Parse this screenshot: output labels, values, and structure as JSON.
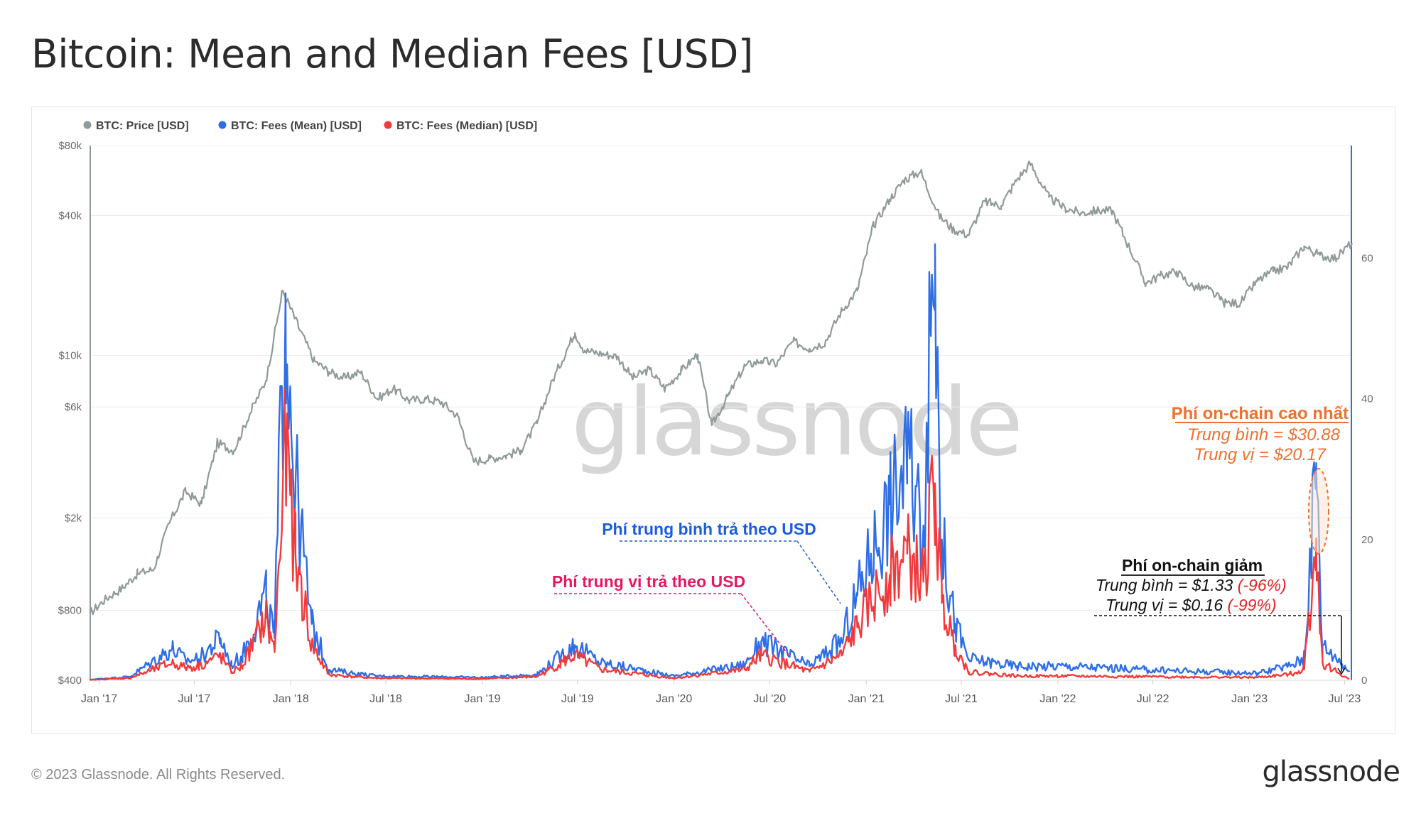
{
  "page": {
    "title": "Bitcoin: Mean and Median Fees [USD]",
    "copyright": "© 2023 Glassnode. All Rights Reserved.",
    "logo": "glassnode",
    "watermark": "glassnode"
  },
  "colors": {
    "price": "#8f9a9a",
    "mean": "#2e6ee6",
    "median": "#f23a3a",
    "accent_orange": "#f07030",
    "median_label": "#e8175d",
    "mean_label": "#1a5ce0"
  },
  "legend": [
    {
      "label": "BTC: Price [USD]",
      "color": "#8f9a9a"
    },
    {
      "label": "BTC: Fees (Mean) [USD]",
      "color": "#2e6ee6"
    },
    {
      "label": "BTC: Fees (Median) [USD]",
      "color": "#f23a3a"
    }
  ],
  "annotations": {
    "mean_label": "Phí trung bình trả theo USD",
    "median_label": "Phí trung vị trả theo USD",
    "peak_title": "Phí on-chain cao nhất",
    "peak_mean": "Trung bình = $30.88",
    "peak_median": "Trung vị = $20.17",
    "drop_title": "Phí on-chain giảm",
    "drop_mean_text": "Trung bình = $1.33 ",
    "drop_mean_pct": "(-96%)",
    "drop_median_text": "Trung vị = $0.16 ",
    "drop_median_pct": "(-99%)"
  },
  "chart_data": {
    "type": "line",
    "x_ticks": [
      "Jan '17",
      "Jul '17",
      "Jan '18",
      "Jul '18",
      "Jan '19",
      "Jul '19",
      "Jan '20",
      "Jul '20",
      "Jan '21",
      "Jul '21",
      "Jan '22",
      "Jul '22",
      "Jan '23",
      "Jul '23"
    ],
    "y_left": {
      "scale": "log",
      "ticks": [
        "$80k",
        "$40k",
        "$10k",
        "$6k",
        "$2k",
        "$800",
        "$400"
      ],
      "tick_values": [
        80000,
        40000,
        10000,
        6000,
        2000,
        800,
        400
      ],
      "lim": [
        400,
        80000
      ]
    },
    "y_right": {
      "scale": "linear",
      "ticks": [
        "60",
        "40",
        "20",
        "0"
      ],
      "tick_values": [
        60,
        40,
        20,
        0
      ],
      "lim": [
        0,
        76
      ]
    },
    "series": [
      {
        "name": "BTC: Price [USD]",
        "axis": "left",
        "x": [
          "2016-12-15",
          "2017-01-15",
          "2017-02-15",
          "2017-03-15",
          "2017-04-15",
          "2017-05-15",
          "2017-06-15",
          "2017-07-15",
          "2017-08-15",
          "2017-09-15",
          "2017-10-15",
          "2017-11-15",
          "2017-12-17",
          "2018-01-15",
          "2018-02-15",
          "2018-03-15",
          "2018-04-15",
          "2018-05-15",
          "2018-06-15",
          "2018-07-15",
          "2018-08-15",
          "2018-09-15",
          "2018-10-15",
          "2018-11-15",
          "2018-12-15",
          "2019-01-15",
          "2019-02-15",
          "2019-03-15",
          "2019-04-15",
          "2019-05-15",
          "2019-06-26",
          "2019-07-15",
          "2019-08-15",
          "2019-09-15",
          "2019-10-15",
          "2019-11-15",
          "2019-12-15",
          "2020-01-15",
          "2020-02-15",
          "2020-03-13",
          "2020-04-15",
          "2020-05-15",
          "2020-06-15",
          "2020-07-15",
          "2020-08-15",
          "2020-09-15",
          "2020-10-15",
          "2020-11-15",
          "2020-12-15",
          "2021-01-15",
          "2021-02-15",
          "2021-03-15",
          "2021-04-15",
          "2021-05-20",
          "2021-06-15",
          "2021-07-15",
          "2021-08-15",
          "2021-09-15",
          "2021-10-15",
          "2021-11-10",
          "2021-12-15",
          "2022-01-15",
          "2022-02-15",
          "2022-03-15",
          "2022-04-15",
          "2022-05-15",
          "2022-06-18",
          "2022-07-15",
          "2022-08-15",
          "2022-09-15",
          "2022-10-15",
          "2022-11-15",
          "2022-12-15",
          "2023-01-15",
          "2023-02-15",
          "2023-03-15",
          "2023-04-15",
          "2023-05-15",
          "2023-06-15",
          "2023-07-15"
        ],
        "values": [
          780,
          900,
          1000,
          1150,
          1200,
          1900,
          2600,
          2300,
          4200,
          3900,
          5600,
          7800,
          19000,
          13500,
          9500,
          8500,
          8000,
          8500,
          6500,
          7200,
          6400,
          6500,
          6300,
          5500,
          3500,
          3600,
          3700,
          3900,
          5100,
          7800,
          12500,
          10500,
          10200,
          9900,
          8000,
          8700,
          7200,
          8600,
          10100,
          5000,
          6800,
          9000,
          9500,
          9200,
          11500,
          10700,
          11400,
          15500,
          19000,
          36000,
          47000,
          57000,
          62000,
          40000,
          35000,
          33000,
          46000,
          44000,
          57000,
          67000,
          48000,
          43000,
          41000,
          42000,
          42000,
          30000,
          20500,
          22000,
          23000,
          19800,
          19300,
          16800,
          16800,
          20800,
          23000,
          24000,
          29500,
          27000,
          26200,
          30500
        ]
      },
      {
        "name": "BTC: Fees (Mean) [USD]",
        "axis": "right",
        "x": [
          "2016-12-15",
          "2017-03-01",
          "2017-05-20",
          "2017-06-15",
          "2017-07-10",
          "2017-08-20",
          "2017-09-10",
          "2017-10-01",
          "2017-11-15",
          "2017-12-01",
          "2017-12-22",
          "2018-01-10",
          "2018-02-10",
          "2018-03-15",
          "2018-05-01",
          "2018-06-15",
          "2019-01-01",
          "2019-04-15",
          "2019-06-26",
          "2019-08-15",
          "2020-01-01",
          "2020-05-15",
          "2020-06-15",
          "2020-09-15",
          "2020-11-15",
          "2020-12-15",
          "2021-01-10",
          "2021-02-15",
          "2021-03-20",
          "2021-04-20",
          "2021-05-12",
          "2021-05-25",
          "2021-06-20",
          "2021-07-15",
          "2021-10-15",
          "2022-01-15",
          "2022-06-15",
          "2023-01-15",
          "2023-03-15",
          "2023-04-15",
          "2023-05-08",
          "2023-05-20",
          "2023-06-20",
          "2023-07-10"
        ],
        "values": [
          0.1,
          0.5,
          4.5,
          2.8,
          3.0,
          6.0,
          2.2,
          3.5,
          12.0,
          6.0,
          55.0,
          28.0,
          8.0,
          1.5,
          1.0,
          0.6,
          0.4,
          0.8,
          5.0,
          2.5,
          0.6,
          2.2,
          5.5,
          2.0,
          5.5,
          12.0,
          18.0,
          25.0,
          31.0,
          22.0,
          62.0,
          20.0,
          8.0,
          3.0,
          2.0,
          2.0,
          1.5,
          1.0,
          2.0,
          3.0,
          30.88,
          5.0,
          3.0,
          1.33
        ]
      },
      {
        "name": "BTC: Fees (Median) [USD]",
        "axis": "right",
        "x": [
          "2016-12-15",
          "2017-03-01",
          "2017-05-20",
          "2017-06-15",
          "2017-07-10",
          "2017-08-20",
          "2017-09-10",
          "2017-10-01",
          "2017-11-15",
          "2017-12-01",
          "2017-12-22",
          "2018-01-10",
          "2018-02-10",
          "2018-03-15",
          "2018-05-01",
          "2018-06-15",
          "2019-01-01",
          "2019-04-15",
          "2019-06-26",
          "2019-08-15",
          "2020-01-01",
          "2020-05-15",
          "2020-06-15",
          "2020-09-15",
          "2020-11-15",
          "2020-12-15",
          "2021-01-10",
          "2021-02-15",
          "2021-03-20",
          "2021-04-20",
          "2021-05-12",
          "2021-05-25",
          "2021-06-20",
          "2021-07-15",
          "2021-10-15",
          "2022-01-15",
          "2022-06-15",
          "2023-01-15",
          "2023-03-15",
          "2023-04-15",
          "2023-05-08",
          "2023-05-20",
          "2023-06-20",
          "2023-07-10"
        ],
        "values": [
          0.05,
          0.3,
          2.5,
          1.8,
          2.0,
          3.5,
          1.2,
          2.0,
          9.0,
          4.0,
          33.0,
          18.0,
          5.0,
          0.8,
          0.5,
          0.3,
          0.2,
          0.5,
          3.5,
          1.5,
          0.3,
          1.5,
          3.5,
          1.2,
          3.5,
          7.5,
          11.0,
          15.0,
          18.0,
          14.0,
          28.0,
          11.0,
          5.0,
          1.2,
          0.6,
          0.6,
          0.5,
          0.4,
          0.8,
          1.5,
          20.17,
          2.5,
          1.0,
          0.16
        ]
      }
    ]
  }
}
